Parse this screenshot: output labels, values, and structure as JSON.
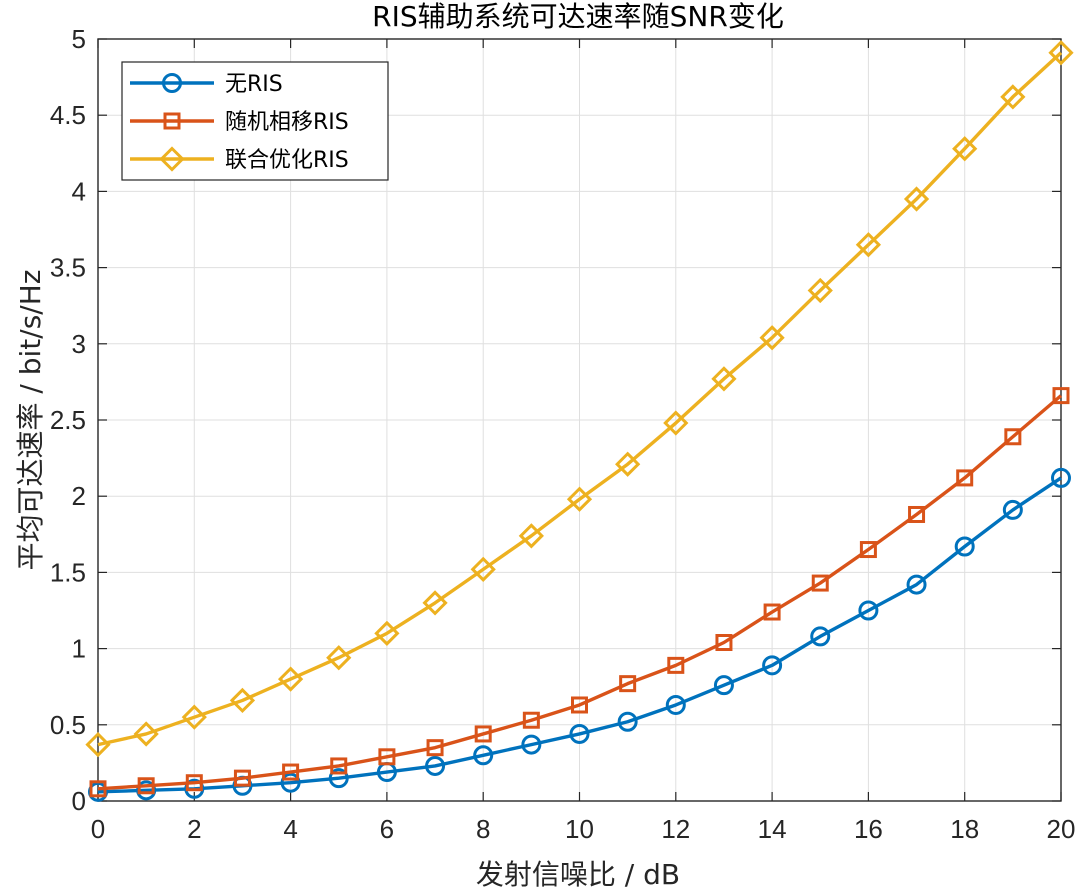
{
  "chart_data": {
    "type": "line",
    "title": "RIS辅助系统可达速率随SNR变化",
    "xlabel": "发射信噪比 / dB",
    "ylabel": "平均可达速率 / bit/s/Hz",
    "xlim": [
      0,
      20
    ],
    "ylim": [
      0,
      5
    ],
    "xticks": [
      "0",
      "2",
      "4",
      "6",
      "8",
      "10",
      "12",
      "14",
      "16",
      "18",
      "20"
    ],
    "yticks": [
      "0",
      "0.5",
      "1",
      "1.5",
      "2",
      "2.5",
      "3",
      "3.5",
      "4",
      "4.5",
      "5"
    ],
    "grid": true,
    "legend_position": "top-left",
    "x": [
      0,
      1,
      2,
      3,
      4,
      5,
      6,
      7,
      8,
      9,
      10,
      11,
      12,
      13,
      14,
      15,
      16,
      17,
      18,
      19,
      20
    ],
    "series": [
      {
        "name": "无RIS",
        "color": "#0072BD",
        "marker": "circle",
        "values": [
          0.06,
          0.07,
          0.08,
          0.1,
          0.12,
          0.15,
          0.19,
          0.23,
          0.3,
          0.37,
          0.44,
          0.52,
          0.63,
          0.76,
          0.89,
          1.08,
          1.25,
          1.42,
          1.67,
          1.91,
          2.12
        ]
      },
      {
        "name": "随机相移RIS",
        "color": "#D95319",
        "marker": "square",
        "values": [
          0.08,
          0.1,
          0.12,
          0.15,
          0.19,
          0.23,
          0.29,
          0.35,
          0.44,
          0.53,
          0.63,
          0.77,
          0.89,
          1.04,
          1.24,
          1.43,
          1.65,
          1.88,
          2.12,
          2.39,
          2.66
        ]
      },
      {
        "name": "联合优化RIS",
        "color": "#EDB120",
        "marker": "diamond",
        "values": [
          0.37,
          0.44,
          0.55,
          0.66,
          0.8,
          0.94,
          1.1,
          1.3,
          1.52,
          1.74,
          1.98,
          2.21,
          2.48,
          2.77,
          3.04,
          3.35,
          3.65,
          3.95,
          4.28,
          4.62,
          4.91
        ]
      }
    ]
  }
}
